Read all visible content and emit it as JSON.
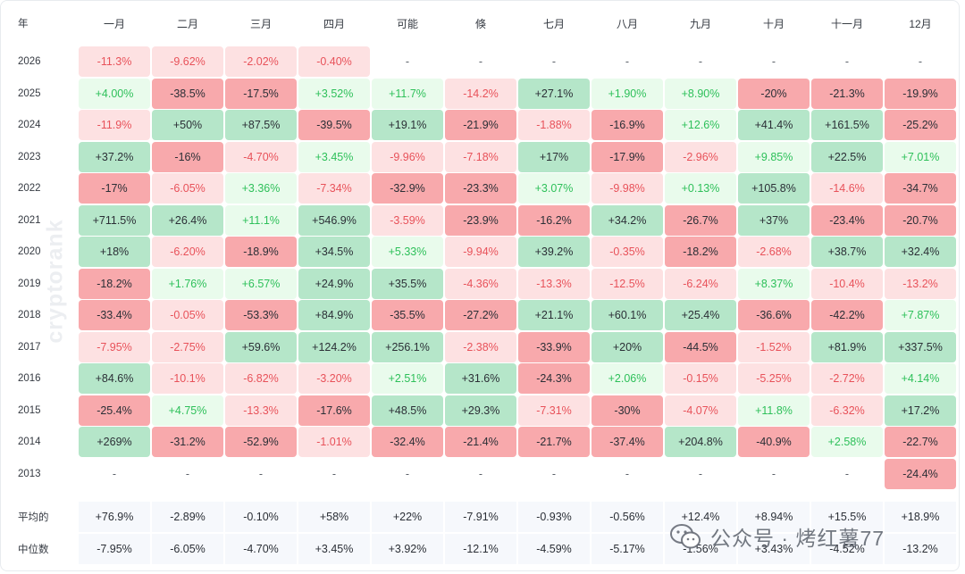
{
  "chart_data": {
    "type": "heatmap",
    "corner_label": "年",
    "columns": [
      "一月",
      "二月",
      "三月",
      "四月",
      "可能",
      "倏",
      "七月",
      "八月",
      "九月",
      "十月",
      "十一月",
      "12月"
    ],
    "rows": [
      {
        "year": "2026",
        "values": [
          "-11.3%",
          "-9.62%",
          "-2.02%",
          "-0.40%",
          "-",
          "-",
          "-",
          "-",
          "-",
          "-",
          "-",
          "-"
        ]
      },
      {
        "year": "2025",
        "values": [
          "+4.00%",
          "-38.5%",
          "-17.5%",
          "+3.52%",
          "+11.7%",
          "-14.2%",
          "+27.1%",
          "+1.90%",
          "+8.90%",
          "-20%",
          "-21.3%",
          "-19.9%"
        ]
      },
      {
        "year": "2024",
        "values": [
          "-11.9%",
          "+50%",
          "+87.5%",
          "-39.5%",
          "+19.1%",
          "-21.9%",
          "-1.88%",
          "-16.9%",
          "+12.6%",
          "+41.4%",
          "+161.5%",
          "-25.2%"
        ]
      },
      {
        "year": "2023",
        "values": [
          "+37.2%",
          "-16%",
          "-4.70%",
          "+3.45%",
          "-9.96%",
          "-7.18%",
          "+17%",
          "-17.9%",
          "-2.96%",
          "+9.85%",
          "+22.5%",
          "+7.01%"
        ]
      },
      {
        "year": "2022",
        "values": [
          "-17%",
          "-6.05%",
          "+3.36%",
          "-7.34%",
          "-32.9%",
          "-23.3%",
          "+3.07%",
          "-9.98%",
          "+0.13%",
          "+105.8%",
          "-14.6%",
          "-34.7%"
        ]
      },
      {
        "year": "2021",
        "values": [
          "+711.5%",
          "+26.4%",
          "+11.1%",
          "+546.9%",
          "-3.59%",
          "-23.9%",
          "-16.2%",
          "+34.2%",
          "-26.7%",
          "+37%",
          "-23.4%",
          "-20.7%"
        ]
      },
      {
        "year": "2020",
        "values": [
          "+18%",
          "-6.20%",
          "-18.9%",
          "+34.5%",
          "+5.33%",
          "-9.94%",
          "+39.2%",
          "-0.35%",
          "-18.2%",
          "-2.68%",
          "+38.7%",
          "+32.4%"
        ]
      },
      {
        "year": "2019",
        "values": [
          "-18.2%",
          "+1.76%",
          "+6.57%",
          "+24.9%",
          "+35.5%",
          "-4.36%",
          "-13.3%",
          "-12.5%",
          "-6.24%",
          "+8.37%",
          "-10.4%",
          "-13.2%"
        ]
      },
      {
        "year": "2018",
        "values": [
          "-33.4%",
          "-0.05%",
          "-53.3%",
          "+84.9%",
          "-35.5%",
          "-27.2%",
          "+21.1%",
          "+60.1%",
          "+25.4%",
          "-36.6%",
          "-42.2%",
          "+7.87%"
        ]
      },
      {
        "year": "2017",
        "values": [
          "-7.95%",
          "-2.75%",
          "+59.6%",
          "+124.2%",
          "+256.1%",
          "-2.38%",
          "-33.9%",
          "+20%",
          "-44.5%",
          "-1.52%",
          "+81.9%",
          "+337.5%"
        ]
      },
      {
        "year": "2016",
        "values": [
          "+84.6%",
          "-10.1%",
          "-6.82%",
          "-3.20%",
          "+2.51%",
          "+31.6%",
          "-24.3%",
          "+2.06%",
          "-0.15%",
          "-5.25%",
          "-2.72%",
          "+4.14%"
        ]
      },
      {
        "year": "2015",
        "values": [
          "-25.4%",
          "+4.75%",
          "-13.3%",
          "-17.6%",
          "+48.5%",
          "+29.3%",
          "-7.31%",
          "-30%",
          "-4.07%",
          "+11.8%",
          "-6.32%",
          "+17.2%"
        ]
      },
      {
        "year": "2014",
        "values": [
          "+269%",
          "-31.2%",
          "-52.9%",
          "-1.01%",
          "-32.4%",
          "-21.4%",
          "-21.7%",
          "-37.4%",
          "+204.8%",
          "-40.9%",
          "+2.58%",
          "-22.7%"
        ]
      },
      {
        "year": "2013",
        "values": [
          "-",
          "-",
          "-",
          "-",
          "-",
          "-",
          "-",
          "-",
          "-",
          "-",
          "-",
          "-24.4%"
        ]
      }
    ],
    "summary_rows": [
      {
        "label": "平均的",
        "values": [
          "+76.9%",
          "-2.89%",
          "-0.10%",
          "+58%",
          "+22%",
          "-7.91%",
          "-0.93%",
          "-0.56%",
          "+12.4%",
          "+8.94%",
          "+15.5%",
          "+18.9%"
        ]
      },
      {
        "label": "中位数",
        "values": [
          "-7.95%",
          "-6.05%",
          "-4.70%",
          "+3.45%",
          "+3.92%",
          "-12.1%",
          "-4.59%",
          "-5.17%",
          "-1.56%",
          "+3.43%",
          "-4.52%",
          "-13.2%"
        ]
      }
    ]
  },
  "colors": {
    "strong_green_bg": "#b5e6c9",
    "strong_green_text": "#2b2f36",
    "light_green_bg": "#e9fbec",
    "light_green_text": "#2ec05a",
    "strong_red_bg": "#f8a9ac",
    "strong_red_text": "#2b2f36",
    "light_red_bg": "#fde1e2",
    "light_red_text": "#e8525a",
    "summary_bg": "#f6f8fc"
  },
  "watermark": "cryptorank",
  "wechat_overlay": "公众号 · 烤红薯77"
}
